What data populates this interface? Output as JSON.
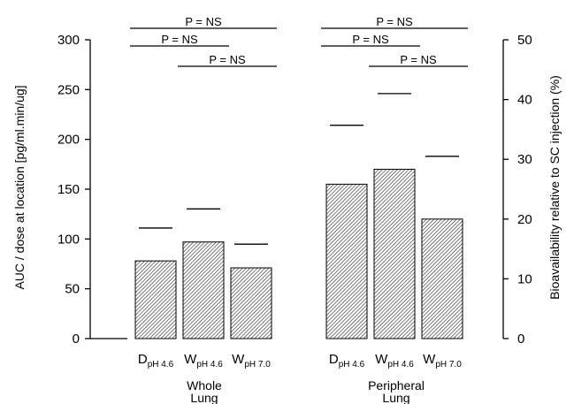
{
  "chart_data": {
    "type": "bar",
    "ylabel": "AUC / dose at location [pg/ml.min/ug]",
    "ylabel_right": "Bioavailability relative to SC injection (%)",
    "ylim": [
      0,
      300
    ],
    "ylim_right": [
      0,
      50
    ],
    "yticks": [
      0,
      50,
      100,
      150,
      200,
      250,
      300
    ],
    "yticks_right": [
      0,
      10,
      20,
      30,
      40,
      50
    ],
    "bar_pattern": "diagonal hatch",
    "groups": [
      {
        "label_line1": "Whole",
        "label_line2": "Lung",
        "categories": [
          {
            "main": "D",
            "sub": "pH 4.6"
          },
          {
            "main": "W",
            "sub": "pH 4.6"
          },
          {
            "main": "W",
            "sub": "pH 7.0"
          }
        ],
        "values": [
          78,
          97,
          71
        ],
        "bioavailability_pct": [
          18.5,
          21.7,
          15.8
        ]
      },
      {
        "label_line1": "Peripheral",
        "label_line2": "Lung",
        "categories": [
          {
            "main": "D",
            "sub": "pH 4.6"
          },
          {
            "main": "W",
            "sub": "pH 4.6"
          },
          {
            "main": "W",
            "sub": "pH 7.0"
          }
        ],
        "values": [
          155,
          170,
          120
        ],
        "bioavailability_pct": [
          35.7,
          41.0,
          30.5
        ]
      }
    ],
    "significance": [
      {
        "group": 0,
        "from": 0,
        "to": 2,
        "label": "P = NS"
      },
      {
        "group": 0,
        "from": 0,
        "to": 1,
        "label": "P = NS"
      },
      {
        "group": 0,
        "from": 1,
        "to": 2,
        "label": "P = NS"
      },
      {
        "group": 1,
        "from": 0,
        "to": 2,
        "label": "P = NS"
      },
      {
        "group": 1,
        "from": 0,
        "to": 1,
        "label": "P = NS"
      },
      {
        "group": 1,
        "from": 1,
        "to": 2,
        "label": "P = NS"
      }
    ]
  }
}
